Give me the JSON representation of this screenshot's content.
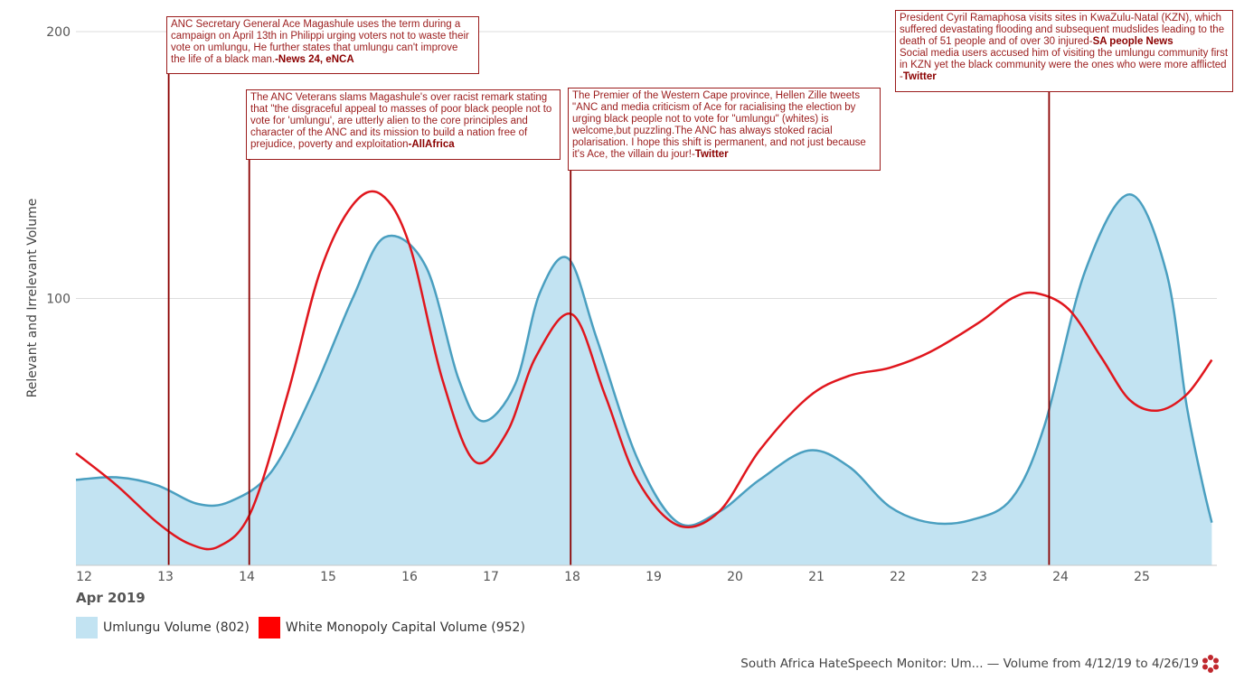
{
  "chart_data": {
    "type": "area",
    "x_labels": [
      "12",
      "13",
      "14",
      "15",
      "16",
      "17",
      "18",
      "19",
      "20",
      "21",
      "22",
      "23",
      "24",
      "25"
    ],
    "x_title": "Apr 2019",
    "ylabel": "Relevant and Irrelevant Volume",
    "ylim": [
      0,
      200
    ],
    "yticks": [
      100,
      200
    ],
    "grid": true,
    "legend_position": "bottom-left",
    "series": [
      {
        "name": "Umlungu Volume (802)",
        "type": "area",
        "color": "#4a9fc0",
        "fill": "#c2e3f2",
        "points": [
          [
            11.9,
            32
          ],
          [
            12.4,
            33
          ],
          [
            12.9,
            30
          ],
          [
            13.4,
            23
          ],
          [
            13.8,
            24
          ],
          [
            14.3,
            35
          ],
          [
            14.8,
            64
          ],
          [
            15.3,
            100
          ],
          [
            15.7,
            123
          ],
          [
            16.2,
            112
          ],
          [
            16.6,
            70
          ],
          [
            16.9,
            54
          ],
          [
            17.3,
            68
          ],
          [
            17.6,
            102
          ],
          [
            17.95,
            115
          ],
          [
            18.3,
            85
          ],
          [
            18.8,
            40
          ],
          [
            19.3,
            16
          ],
          [
            19.8,
            20
          ],
          [
            20.3,
            32
          ],
          [
            20.9,
            43
          ],
          [
            21.4,
            37
          ],
          [
            21.9,
            22
          ],
          [
            22.4,
            16
          ],
          [
            22.9,
            17
          ],
          [
            23.4,
            25
          ],
          [
            23.8,
            52
          ],
          [
            24.3,
            110
          ],
          [
            24.85,
            139
          ],
          [
            25.3,
            110
          ],
          [
            25.55,
            60
          ],
          [
            25.75,
            30
          ],
          [
            25.86,
            16
          ]
        ]
      },
      {
        "name": "White Monopoly Capital Volume (952)",
        "type": "line",
        "color": "#e0161d",
        "points": [
          [
            11.9,
            42
          ],
          [
            12.4,
            30
          ],
          [
            12.9,
            16
          ],
          [
            13.3,
            8
          ],
          [
            13.65,
            7
          ],
          [
            14.05,
            20
          ],
          [
            14.5,
            64
          ],
          [
            14.9,
            110
          ],
          [
            15.3,
            135
          ],
          [
            15.65,
            139
          ],
          [
            16.0,
            120
          ],
          [
            16.4,
            70
          ],
          [
            16.8,
            39
          ],
          [
            17.2,
            50
          ],
          [
            17.55,
            78
          ],
          [
            18.0,
            94
          ],
          [
            18.4,
            64
          ],
          [
            18.8,
            32
          ],
          [
            19.3,
            15
          ],
          [
            19.8,
            20
          ],
          [
            20.3,
            43
          ],
          [
            20.9,
            63
          ],
          [
            21.4,
            71
          ],
          [
            21.9,
            74
          ],
          [
            22.4,
            80
          ],
          [
            23.0,
            91
          ],
          [
            23.4,
            100
          ],
          [
            23.7,
            102
          ],
          [
            24.1,
            96
          ],
          [
            24.5,
            78
          ],
          [
            24.85,
            62
          ],
          [
            25.2,
            58
          ],
          [
            25.55,
            64
          ],
          [
            25.86,
            77
          ]
        ]
      }
    ],
    "annotations": [
      {
        "x": 13.04,
        "text": "ANC Secretary General Ace Magashule uses the term during a campaign on April 13th in Philippi urging voters not to  waste their vote on umlungu, He further states that umlungu can't improve the life of a black man.",
        "source": "-News 24, eNCA"
      },
      {
        "x": 14.03,
        "text": "The ANC Veterans slams Magashule's over racist remark stating that \"the disgraceful appeal to masses of poor black people not to vote for 'umlungu', are utterly alien to the core principles and character of the ANC and its mission to build a nation free of prejudice, poverty and exploitation",
        "source": "-AllAfrica"
      },
      {
        "x": 17.98,
        "text": "The Premier of the Western Cape province, Hellen Zille tweets \"ANC and media criticism of Ace for racialising the election by urging black people not to vote for \"umlungu\" (whites) is welcome,but puzzling.The ANC has always stoked racial polarisation. I hope this shift is permanent, and not just because it's Ace, the villain du jour!-",
        "source": "Twitter"
      },
      {
        "x": 23.86,
        "text": "President Cyril Ramaphosa visits sites in KwaZulu-Natal (KZN), which suffered devastating flooding and subsequent mudslides leading to the  death of 51 people and of over 30 injured-",
        "source": "SA people News",
        "text2": "Social media users accused him of visiting the umlungu community first in KZN yet the black community were the ones who were more afflicted -",
        "source2": "Twitter"
      }
    ]
  },
  "footer": {
    "text": "South Africa HateSpeech Monitor: Um... — Volume from 4/12/19 to 4/26/19",
    "logo_icon": "flower-logo-icon"
  }
}
